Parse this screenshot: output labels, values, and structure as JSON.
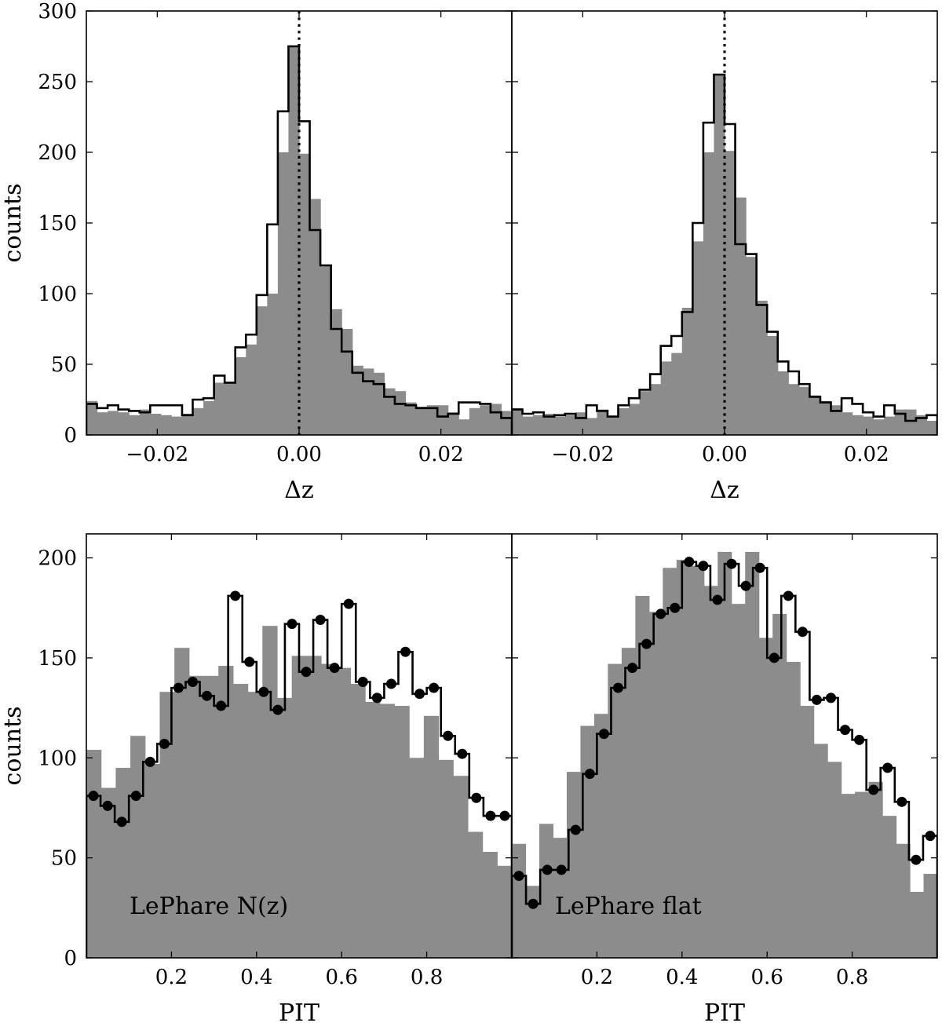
{
  "chart_data": [
    {
      "type": "bar",
      "panel": "top-left",
      "xlim": [
        -0.03,
        0.03
      ],
      "ylim": [
        0,
        300
      ],
      "xticks": [
        -0.02,
        0.0,
        0.02
      ],
      "xtick_labels": [
        "−0.02",
        "0.00",
        "0.02"
      ],
      "yticks": [
        0,
        50,
        100,
        150,
        200,
        250,
        300
      ],
      "ytick_labels": [
        "0",
        "50",
        "100",
        "150",
        "200",
        "250",
        "300"
      ],
      "xlabel": "Δz",
      "ylabel": "counts",
      "reference_line_x": 0.0,
      "bin_edges_start": -0.03,
      "bin_width": 0.0015,
      "series": [
        {
          "style": "filled-gray",
          "values": [
            24,
            16,
            17,
            16,
            14,
            18,
            15,
            14,
            13,
            15,
            19,
            24,
            37,
            37,
            55,
            64,
            91,
            100,
            200,
            275,
            199,
            167,
            120,
            89,
            75,
            49,
            47,
            44,
            33,
            31,
            23,
            20,
            21,
            21,
            16,
            11,
            19,
            21,
            22,
            17
          ]
        },
        {
          "style": "step-outline",
          "values": [
            22,
            19,
            21,
            18,
            17,
            16,
            21,
            21,
            21,
            14,
            25,
            26,
            42,
            37,
            62,
            71,
            99,
            149,
            229,
            275,
            222,
            145,
            120,
            75,
            59,
            44,
            38,
            36,
            27,
            22,
            21,
            19,
            19,
            13,
            15,
            23,
            23,
            22,
            16,
            12
          ]
        }
      ]
    },
    {
      "type": "bar",
      "panel": "top-right",
      "xlim": [
        -0.03,
        0.03
      ],
      "ylim": [
        0,
        300
      ],
      "xticks": [
        -0.02,
        0.0,
        0.02
      ],
      "xtick_labels": [
        "−0.02",
        "0.00",
        "0.02"
      ],
      "yticks": [
        0,
        50,
        100,
        150,
        200,
        250,
        300
      ],
      "ytick_labels": [
        "",
        "",
        "",
        "",
        "",
        "",
        ""
      ],
      "xlabel": "Δz",
      "ylabel": "",
      "reference_line_x": 0.0,
      "bin_edges_start": -0.03,
      "bin_width": 0.0015,
      "series": [
        {
          "style": "filled-gray",
          "values": [
            19,
            13,
            14,
            15,
            13,
            14,
            16,
            12,
            18,
            13,
            19,
            22,
            31,
            36,
            52,
            58,
            90,
            137,
            200,
            255,
            201,
            168,
            126,
            95,
            70,
            45,
            36,
            34,
            28,
            24,
            21,
            16,
            14,
            13,
            11,
            13,
            18,
            18,
            14,
            10
          ]
        },
        {
          "style": "step-outline",
          "values": [
            18,
            15,
            16,
            13,
            14,
            15,
            12,
            21,
            17,
            13,
            21,
            26,
            32,
            43,
            63,
            70,
            87,
            150,
            221,
            255,
            220,
            135,
            128,
            92,
            73,
            52,
            45,
            36,
            27,
            23,
            17,
            26,
            22,
            16,
            13,
            21,
            15,
            10,
            12,
            14
          ]
        }
      ]
    },
    {
      "type": "bar",
      "panel": "bottom-left",
      "annotation": "LePhare N(z)",
      "xlim": [
        0,
        1
      ],
      "ylim": [
        0,
        212
      ],
      "xticks": [
        0.2,
        0.4,
        0.6,
        0.8
      ],
      "xtick_labels": [
        "0.2",
        "0.4",
        "0.6",
        "0.8"
      ],
      "yticks": [
        0,
        50,
        100,
        150,
        200
      ],
      "ytick_labels": [
        "0",
        "50",
        "100",
        "150",
        "200"
      ],
      "xlabel": "PIT",
      "ylabel": "counts",
      "bin_width": 0.0333,
      "series": [
        {
          "style": "filled-gray",
          "values": [
            104,
            85,
            95,
            111,
            97,
            133,
            155,
            141,
            141,
            146,
            137,
            133,
            166,
            130,
            151,
            151,
            147,
            145,
            137,
            128,
            127,
            126,
            100,
            121,
            99,
            91,
            63,
            53,
            46
          ]
        },
        {
          "style": "step-outline-with-markers",
          "values": [
            81,
            76,
            68,
            81,
            98,
            107,
            135,
            138,
            131,
            126,
            181,
            148,
            133,
            124,
            167,
            143,
            169,
            145,
            177,
            138,
            130,
            137,
            153,
            132,
            135,
            111,
            102,
            80,
            71,
            71
          ]
        }
      ]
    },
    {
      "type": "bar",
      "panel": "bottom-right",
      "annotation": "LePhare flat",
      "xlim": [
        0,
        1
      ],
      "ylim": [
        0,
        212
      ],
      "xticks": [
        0.2,
        0.4,
        0.6,
        0.8
      ],
      "xtick_labels": [
        "0.2",
        "0.4",
        "0.6",
        "0.8"
      ],
      "yticks": [
        0,
        50,
        100,
        150,
        200
      ],
      "ytick_labels": [
        "",
        "",
        "",
        "",
        ""
      ],
      "xlabel": "PIT",
      "ylabel": "",
      "bin_width": 0.0333,
      "series": [
        {
          "style": "filled-gray",
          "values": [
            57,
            36,
            67,
            60,
            93,
            116,
            122,
            147,
            155,
            181,
            173,
            195,
            199,
            196,
            186,
            203,
            177,
            203,
            160,
            172,
            148,
            126,
            107,
            98,
            82,
            83,
            88,
            71,
            57,
            33,
            42
          ]
        },
        {
          "style": "step-outline-with-markers",
          "values": [
            41,
            27,
            44,
            44,
            64,
            92,
            112,
            135,
            145,
            157,
            172,
            175,
            198,
            196,
            179,
            197,
            186,
            195,
            150,
            181,
            163,
            129,
            130,
            114,
            109,
            84,
            95,
            78,
            49,
            61
          ]
        }
      ]
    }
  ]
}
